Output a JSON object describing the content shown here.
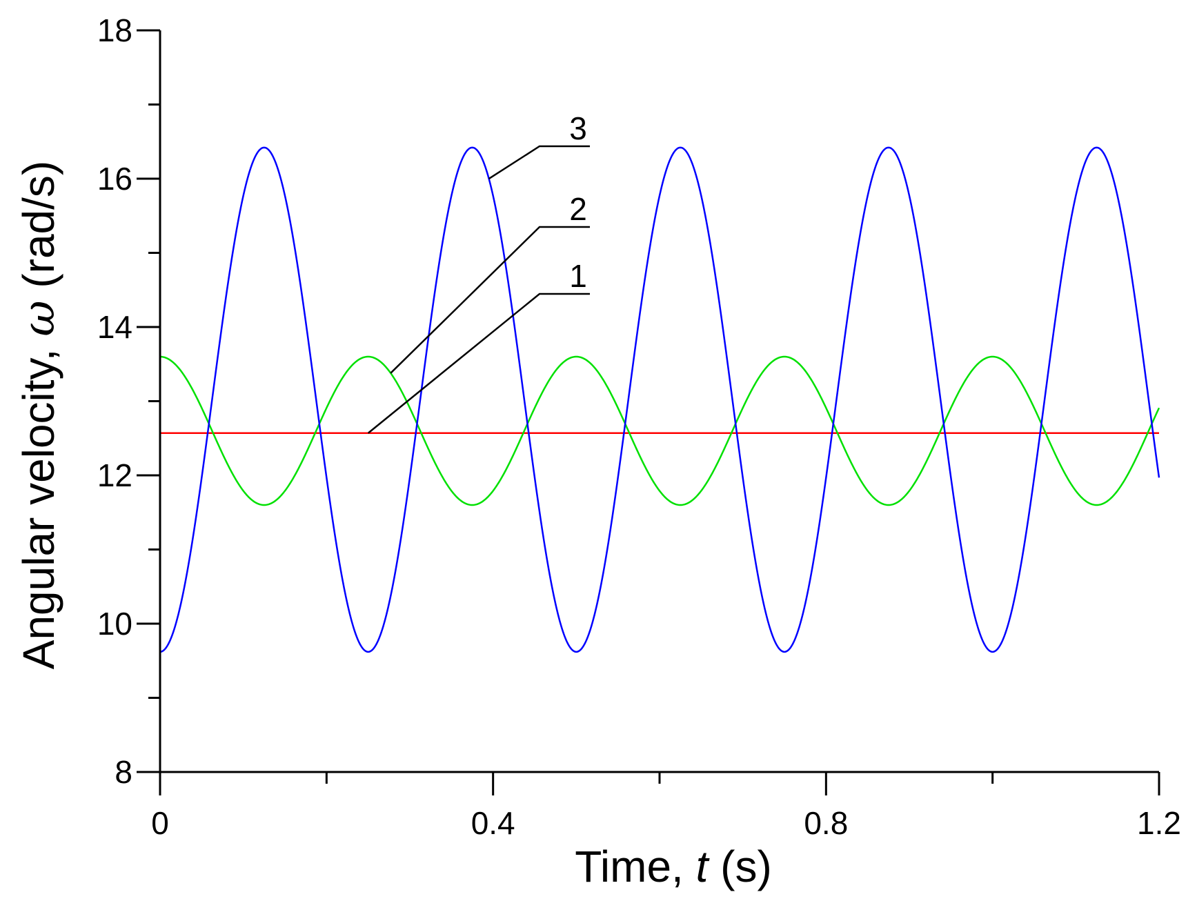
{
  "chart_data": {
    "type": "line",
    "xlabel": "Time, ",
    "xlabel_var": "t",
    "xlabel_unit": " (s)",
    "ylabel": "Angular velocity, ",
    "ylabel_var": "ω",
    "ylabel_unit": " (rad/s)",
    "xlim": [
      0,
      1.2
    ],
    "ylim": [
      8,
      18
    ],
    "x_ticks": [
      0,
      0.4,
      0.8,
      1.2
    ],
    "x_tick_labels": [
      "0",
      "0.4",
      "0.8",
      "1.2"
    ],
    "x_minor_ticks": [
      0.2,
      0.6,
      1.0
    ],
    "y_ticks": [
      8,
      10,
      12,
      14,
      16,
      18
    ],
    "y_tick_labels": [
      "8",
      "10",
      "12",
      "14",
      "16",
      "18"
    ],
    "y_minor_ticks": [
      9,
      11,
      13,
      15,
      17
    ],
    "grid": false,
    "series": [
      {
        "label": "1",
        "color": "#ff0000",
        "form": "mean + amplitude * cos(2*pi*x/period)",
        "mean": 12.57,
        "amplitude": 0,
        "period": 0.25,
        "label_anchor_x": 0.25
      },
      {
        "label": "2",
        "color": "#00e000",
        "form": "mean + amplitude * cos(2*pi*x/period)",
        "mean": 12.6,
        "amplitude": 1.0,
        "period": 0.25,
        "label_anchor_x": 0.277
      },
      {
        "label": "3",
        "color": "#0000ff",
        "form": "mean - amplitude * cos(2*pi*x/period)",
        "mean": 13.02,
        "amplitude": 3.4,
        "period": 0.25,
        "label_anchor_x": 0.395
      }
    ]
  }
}
